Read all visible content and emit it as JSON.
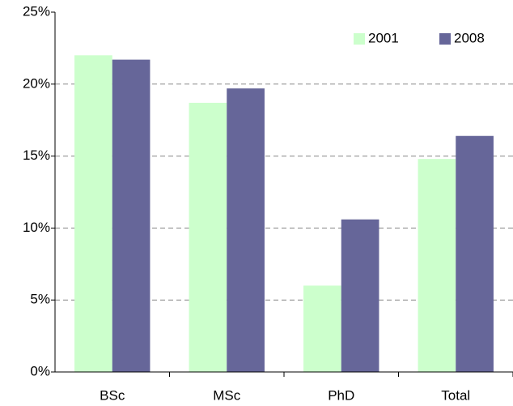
{
  "chart_data": {
    "type": "bar",
    "categories": [
      "BSc",
      "MSc",
      "PhD",
      "Total"
    ],
    "series": [
      {
        "name": "2001",
        "color": "#ccffcc",
        "values": [
          22.0,
          18.7,
          6.0,
          14.8
        ]
      },
      {
        "name": "2008",
        "color": "#666699",
        "values": [
          21.7,
          19.7,
          10.6,
          16.4
        ]
      }
    ],
    "ylim": [
      0,
      25
    ],
    "yticks": [
      {
        "value": 0,
        "label": "0%"
      },
      {
        "value": 5,
        "label": "5%"
      },
      {
        "value": 10,
        "label": "10%"
      },
      {
        "value": 15,
        "label": "15%"
      },
      {
        "value": 20,
        "label": "20%"
      },
      {
        "value": 25,
        "label": "25%"
      }
    ],
    "grid": true,
    "legend": "top-right"
  }
}
